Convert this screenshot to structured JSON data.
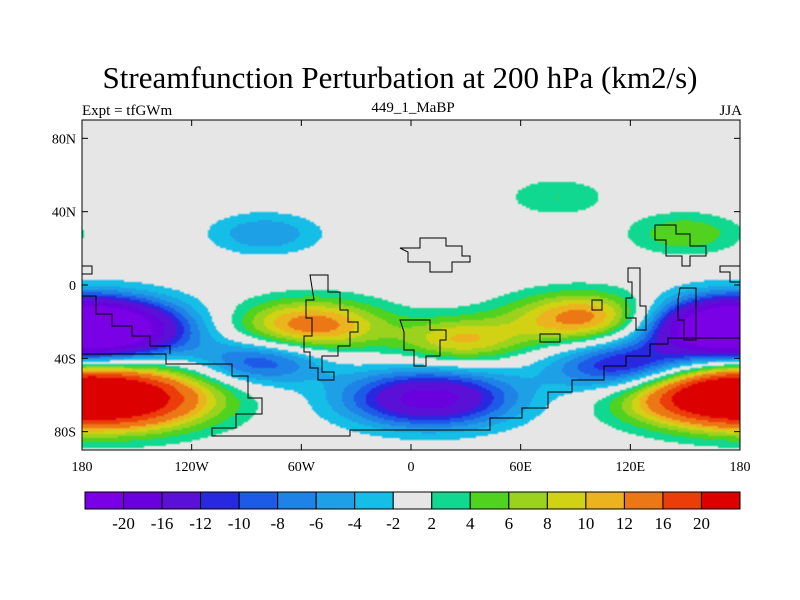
{
  "chart_data": {
    "type": "heatmap",
    "title": "Streamfunction Perturbation at 200 hPa (km2/s)",
    "left_subtitle": "Expt = tfGWm",
    "center_subtitle": "449_1_MaBP",
    "right_subtitle": "JJA",
    "x_ticks": [
      "180",
      "120W",
      "60W",
      "0",
      "60E",
      "120E",
      "180"
    ],
    "y_ticks": [
      "80N",
      "40N",
      "0",
      "40S",
      "80S"
    ],
    "x_tick_lon": [
      -180,
      -120,
      -60,
      0,
      60,
      120,
      180
    ],
    "y_tick_lat": [
      80,
      40,
      0,
      -40,
      -80
    ],
    "lon_range": [
      -180,
      180
    ],
    "lat_range": [
      -90,
      90
    ],
    "colorbar": {
      "levels": [
        "-20",
        "-16",
        "-12",
        "-10",
        "-8",
        "-6",
        "-4",
        "-2",
        "2",
        "4",
        "6",
        "8",
        "10",
        "12",
        "16",
        "20"
      ],
      "colors": [
        "#7a00e6",
        "#6a00dd",
        "#5a10d6",
        "#2828e0",
        "#1e5ae8",
        "#1e82e6",
        "#1ea0e6",
        "#14bee6",
        "#e6e6e6",
        "#10d890",
        "#50d21e",
        "#9ad21e",
        "#d2d214",
        "#ebb41e",
        "#eb7814",
        "#eb3c0a",
        "#dc0000"
      ]
    },
    "features": [
      {
        "name": "south-pacific-high-west",
        "lon": -158,
        "lat": -62,
        "value": 22
      },
      {
        "name": "south-pacific-high-east",
        "lon": 163,
        "lat": -60,
        "value": 20
      },
      {
        "name": "southern-ocean-low",
        "lon": 10,
        "lat": -62,
        "value": -18
      },
      {
        "name": "pacific-low-west",
        "lon": -172,
        "lat": -25,
        "value": -20
      },
      {
        "name": "pacific-low-east",
        "lon": 175,
        "lat": -22,
        "value": -18
      },
      {
        "name": "indian-ocean-low",
        "lon": 118,
        "lat": -45,
        "value": -14
      },
      {
        "name": "south-america-high",
        "lon": -55,
        "lat": -22,
        "value": 14
      },
      {
        "name": "africa-high",
        "lon": 28,
        "lat": -30,
        "value": 10
      },
      {
        "name": "indian-ocean-high",
        "lon": 95,
        "lat": -18,
        "value": 14
      },
      {
        "name": "andes-low",
        "lon": -82,
        "lat": -42,
        "value": -10
      },
      {
        "name": "north-pacific-neg-band",
        "lon": -80,
        "lat": 28,
        "value": -6
      },
      {
        "name": "north-hemisphere-pos-band",
        "lon": 80,
        "lat": 48,
        "value": 4
      },
      {
        "name": "asia-pos",
        "lon": 150,
        "lat": 28,
        "value": 6
      }
    ]
  }
}
